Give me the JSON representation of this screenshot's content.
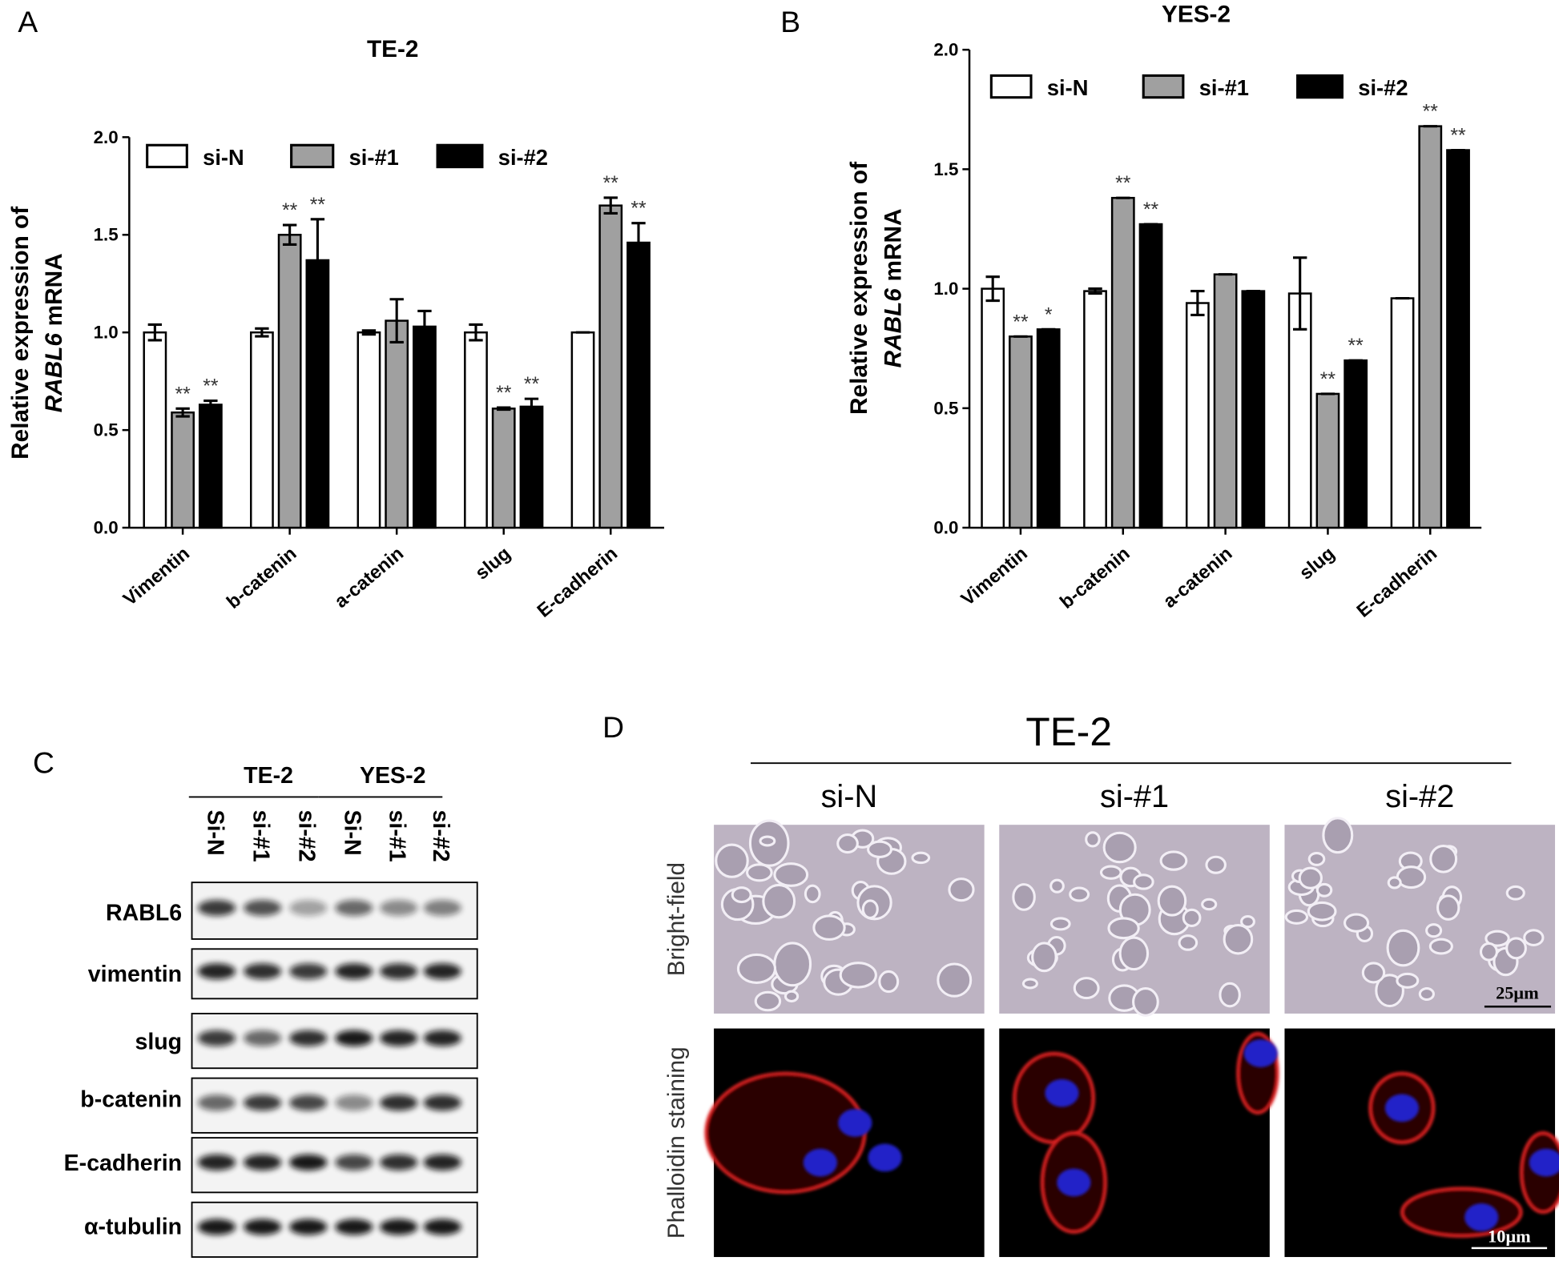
{
  "panel_labels": [
    "A",
    "B",
    "C",
    "D"
  ],
  "chart_data": [
    {
      "type": "bar",
      "title": "TE-2",
      "ylabel": "Relative expression of",
      "ylabel_gene": "RABL6",
      "ylabel_unit": "mRNA",
      "categories": [
        "Vimentin",
        "b-catenin",
        "a-catenin",
        "slug",
        "E-cadherin"
      ],
      "series": [
        {
          "name": "si-N",
          "color": "#ffffff",
          "values": [
            1.0,
            1.0,
            1.0,
            1.0,
            1.0
          ],
          "errors": [
            0.04,
            0.02,
            0.01,
            0.04,
            0.0
          ],
          "annotations": [
            null,
            null,
            null,
            null,
            null
          ]
        },
        {
          "name": "si-#1",
          "color": "#a0a0a0",
          "values": [
            0.59,
            1.5,
            1.06,
            0.61,
            1.65
          ],
          "errors": [
            0.02,
            0.05,
            0.11,
            0.005,
            0.04
          ],
          "annotations": [
            "**",
            "**",
            null,
            "**",
            "**"
          ]
        },
        {
          "name": "si-#2",
          "color": "#000000",
          "values": [
            0.63,
            1.37,
            1.03,
            0.62,
            1.46
          ],
          "errors": [
            0.02,
            0.21,
            0.08,
            0.04,
            0.1
          ],
          "annotations": [
            "**",
            "**",
            null,
            "**",
            "**"
          ]
        }
      ],
      "ylim": [
        0,
        2
      ],
      "yticks": [
        {
          "value": 0,
          "label": "0.0"
        },
        {
          "value": 0.5,
          "label": "0.5"
        },
        {
          "value": 1,
          "label": "1.0"
        },
        {
          "value": 1.5,
          "label": "1.5"
        },
        {
          "value": 2,
          "label": "2.0"
        }
      ]
    },
    {
      "type": "bar",
      "title": "YES-2",
      "ylabel": "Relative expression of",
      "ylabel_gene": "RABL6",
      "ylabel_unit": "mRNA",
      "categories": [
        "Vimentin",
        "b-catenin",
        "a-catenin",
        "slug",
        "E-cadherin"
      ],
      "series": [
        {
          "name": "si-N",
          "color": "#ffffff",
          "values": [
            1.0,
            0.99,
            0.94,
            0.98,
            0.96
          ],
          "errors": [
            0.05,
            0.01,
            0.05,
            0.15,
            0.0
          ],
          "annotations": [
            null,
            null,
            null,
            null,
            null
          ]
        },
        {
          "name": "si-#1",
          "color": "#a0a0a0",
          "values": [
            0.8,
            1.38,
            1.06,
            0.56,
            1.68
          ],
          "errors": [
            0,
            0,
            0,
            0,
            0
          ],
          "annotations": [
            "**",
            "**",
            null,
            "**",
            "**"
          ]
        },
        {
          "name": "si-#2",
          "color": "#000000",
          "values": [
            0.83,
            1.27,
            0.99,
            0.7,
            1.58
          ],
          "errors": [
            0,
            0,
            0,
            0,
            0
          ],
          "annotations": [
            "*",
            "**",
            null,
            "**",
            "**"
          ]
        }
      ],
      "ylim": [
        0,
        2
      ],
      "yticks": [
        {
          "value": 0,
          "label": "0.0"
        },
        {
          "value": 0.5,
          "label": "0.5"
        },
        {
          "value": 1,
          "label": "1.0"
        },
        {
          "value": 1.5,
          "label": "1.5"
        },
        {
          "value": 2,
          "label": "2.0"
        }
      ]
    }
  ],
  "blot": {
    "groups": [
      "TE-2",
      "YES-2"
    ],
    "lanes": [
      "Si-N",
      "si-#1",
      "si-#2",
      "Si-N",
      "si-#1",
      "si-#2"
    ],
    "rows": [
      "RABL6",
      "vimentin",
      "slug",
      "b-catenin",
      "E-cadherin",
      "α-tubulin"
    ]
  },
  "imaging": {
    "title": "TE-2",
    "columns": [
      "si-N",
      "si-#1",
      "si-#2"
    ],
    "rows": [
      "Bright-field",
      "Phalloidin staining"
    ],
    "scale_bars": [
      "25μm",
      "10μm"
    ]
  }
}
